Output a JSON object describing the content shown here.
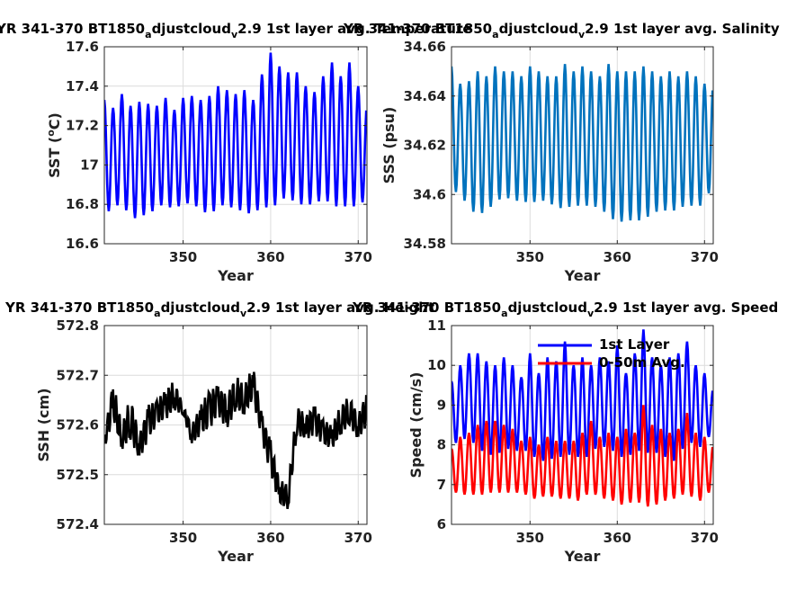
{
  "chart_data": [
    {
      "type": "line",
      "title": "YR 341-370 BT1850_adjustcloud_v2.9 1st layer avg. Temperature",
      "title_main": "YR 341-370 BT1850",
      "title_sub1": "a",
      "title_mid": "djustcloud",
      "title_sub2": "v",
      "title_rest": "2.9 1st layer avg. Temperature",
      "xlabel": "Year",
      "ylabel": "SST (",
      "ylabel_sup": "o",
      "ylabel_end": "C)",
      "xlim": [
        341,
        371
      ],
      "ylim": [
        16.6,
        17.6
      ],
      "xticks": [
        "350",
        "360",
        "370"
      ],
      "xtick_values": [
        350,
        360,
        370
      ],
      "yticks": [
        "16.6",
        "16.8",
        "17",
        "17.2",
        "17.4",
        "17.6"
      ],
      "ytick_values": [
        16.6,
        16.8,
        17.0,
        17.2,
        17.4,
        17.6
      ],
      "grid": true,
      "series": [
        {
          "color": "#0000ff",
          "x": [
            341,
            342,
            343,
            344,
            345,
            346,
            347,
            348,
            349,
            350,
            351,
            352,
            353,
            354,
            355,
            356,
            357,
            358,
            359,
            360,
            361,
            362,
            363,
            364,
            365,
            366,
            367,
            368,
            369,
            370,
            371
          ],
          "y_max": [
            17.33,
            17.29,
            17.36,
            17.3,
            17.32,
            17.31,
            17.3,
            17.34,
            17.28,
            17.34,
            17.35,
            17.33,
            17.35,
            17.4,
            17.38,
            17.36,
            17.38,
            17.33,
            17.46,
            17.57,
            17.5,
            17.47,
            17.47,
            17.4,
            17.37,
            17.45,
            17.52,
            17.45,
            17.52,
            17.4,
            17.3
          ],
          "y_min": [
            16.77,
            16.76,
            16.83,
            16.71,
            16.75,
            16.74,
            16.79,
            16.8,
            16.77,
            16.81,
            16.8,
            16.78,
            16.74,
            16.79,
            16.8,
            16.77,
            16.77,
            16.74,
            16.8,
            16.77,
            16.82,
            16.84,
            16.8,
            16.8,
            16.8,
            16.83,
            16.8,
            16.78,
            16.8,
            16.78,
            16.84
          ]
        }
      ]
    },
    {
      "type": "line",
      "title": "YR 341-370 BT1850_adjustcloud_v2.9 1st layer avg. Salinity",
      "title_main": "YR 341-370 BT1850",
      "title_sub1": "a",
      "title_mid": "djustcloud",
      "title_sub2": "v",
      "title_rest": "2.9 1st layer avg. Salinity",
      "xlabel": "Year",
      "ylabel": "SSS (psu)",
      "xlim": [
        341,
        371
      ],
      "ylim": [
        34.58,
        34.66
      ],
      "xticks": [
        "350",
        "360",
        "370"
      ],
      "xtick_values": [
        350,
        360,
        370
      ],
      "yticks": [
        "34.58",
        "34.6",
        "34.62",
        "34.64",
        "34.66"
      ],
      "ytick_values": [
        34.58,
        34.6,
        34.62,
        34.64,
        34.66
      ],
      "grid": true,
      "series": [
        {
          "color": "#0072bd",
          "x": [
            341,
            342,
            343,
            344,
            345,
            346,
            347,
            348,
            349,
            350,
            351,
            352,
            353,
            354,
            355,
            356,
            357,
            358,
            359,
            360,
            361,
            362,
            363,
            364,
            365,
            366,
            367,
            368,
            369,
            370,
            371
          ],
          "y_max": [
            34.652,
            34.645,
            34.646,
            34.65,
            34.648,
            34.652,
            34.65,
            34.65,
            34.648,
            34.652,
            34.65,
            34.648,
            34.648,
            34.653,
            34.65,
            34.652,
            34.65,
            34.648,
            34.653,
            34.65,
            34.65,
            34.65,
            34.652,
            34.65,
            34.648,
            34.65,
            34.648,
            34.65,
            34.648,
            34.645,
            34.645
          ],
          "y_min": [
            34.602,
            34.6,
            34.595,
            34.591,
            34.594,
            34.596,
            34.6,
            34.597,
            34.598,
            34.596,
            34.598,
            34.597,
            34.595,
            34.594,
            34.596,
            34.595,
            34.596,
            34.594,
            34.592,
            34.588,
            34.59,
            34.589,
            34.59,
            34.592,
            34.594,
            34.593,
            34.594,
            34.596,
            34.595,
            34.596,
            34.605
          ]
        }
      ]
    },
    {
      "type": "line",
      "title": "YR 341-370 BT1850_adjustcloud_v2.9 1st layer avg. Height",
      "title_main": "YR 341-370 BT1850",
      "title_sub1": "a",
      "title_mid": "djustcloud",
      "title_sub2": "v",
      "title_rest": "2.9 1st layer avg. Height",
      "xlabel": "Year",
      "ylabel": "SSH (cm)",
      "xlim": [
        341,
        371
      ],
      "ylim": [
        572.4,
        572.8
      ],
      "xticks": [
        "350",
        "360",
        "370"
      ],
      "xtick_values": [
        350,
        360,
        370
      ],
      "yticks": [
        "572.4",
        "572.5",
        "572.6",
        "572.7",
        "572.8"
      ],
      "ytick_values": [
        572.4,
        572.5,
        572.6,
        572.7,
        572.8
      ],
      "grid": true,
      "series": [
        {
          "color": "#000000",
          "x": [
            341,
            342,
            343,
            344,
            345,
            346,
            347,
            348,
            349,
            350,
            351,
            352,
            353,
            354,
            355,
            356,
            357,
            358,
            359,
            360,
            361,
            362,
            363,
            364,
            365,
            366,
            367,
            368,
            369,
            370,
            371
          ],
          "y": [
            572.58,
            572.69,
            572.6,
            572.66,
            572.58,
            572.64,
            572.65,
            572.67,
            572.69,
            572.64,
            572.6,
            572.64,
            572.67,
            572.68,
            572.66,
            572.7,
            572.68,
            572.72,
            572.62,
            572.57,
            572.49,
            572.48,
            572.64,
            572.62,
            572.64,
            572.61,
            572.6,
            572.64,
            572.66,
            572.62,
            572.67
          ],
          "y_min": [
            572.55,
            572.61,
            572.55,
            572.57,
            572.53,
            572.57,
            572.6,
            572.61,
            572.63,
            572.62,
            572.56,
            572.58,
            572.59,
            572.62,
            572.59,
            572.63,
            572.62,
            572.65,
            572.57,
            572.5,
            572.44,
            572.43,
            572.58,
            572.57,
            572.58,
            572.56,
            572.55,
            572.58,
            572.6,
            572.57,
            572.6
          ]
        }
      ]
    },
    {
      "type": "line",
      "title": "YR 341-370 BT1850_adjustcloud_v2.9 1st layer avg. Speed",
      "title_main": "YR 341-370 BT1850",
      "title_sub1": "a",
      "title_mid": "djustcloud",
      "title_sub2": "v",
      "title_rest": "2.9 1st layer avg. Speed",
      "xlabel": "Year",
      "ylabel": "Speed (cm/s)",
      "xlim": [
        341,
        371
      ],
      "ylim": [
        6,
        11
      ],
      "xticks": [
        "350",
        "360",
        "370"
      ],
      "xtick_values": [
        350,
        360,
        370
      ],
      "yticks": [
        "6",
        "7",
        "8",
        "9",
        "10",
        "11"
      ],
      "ytick_values": [
        6,
        7,
        8,
        9,
        10,
        11
      ],
      "grid": true,
      "legend": {
        "placement": "top-right",
        "entries": [
          "1st Layer",
          "0-50m Avg."
        ]
      },
      "series": [
        {
          "name": "1st Layer",
          "color": "#0000ff",
          "x": [
            341,
            342,
            343,
            344,
            345,
            346,
            347,
            348,
            349,
            350,
            351,
            352,
            353,
            354,
            355,
            356,
            357,
            358,
            359,
            360,
            361,
            362,
            363,
            364,
            365,
            366,
            367,
            368,
            369,
            370,
            371
          ],
          "y_max": [
            9.6,
            10.0,
            10.3,
            10.3,
            10.1,
            10.0,
            10.2,
            10.0,
            9.7,
            10.3,
            9.8,
            10.2,
            10.1,
            10.6,
            10.0,
            10.2,
            10.0,
            10.2,
            10.1,
            10.5,
            9.8,
            10.3,
            10.9,
            10.2,
            10.0,
            10.2,
            10.3,
            10.6,
            10.0,
            9.8,
            9.4
          ],
          "y_min": [
            8.1,
            8.0,
            8.3,
            7.8,
            7.9,
            7.6,
            8.0,
            7.8,
            7.9,
            7.8,
            7.6,
            7.6,
            7.7,
            7.7,
            7.8,
            7.6,
            7.8,
            8.0,
            7.9,
            7.8,
            7.6,
            7.9,
            7.8,
            7.8,
            7.8,
            7.6,
            7.6,
            8.2,
            7.9,
            8.0,
            8.4
          ]
        },
        {
          "name": "0-50m Avg.",
          "color": "#ff0000",
          "x": [
            341,
            342,
            343,
            344,
            345,
            346,
            347,
            348,
            349,
            350,
            351,
            352,
            353,
            354,
            355,
            356,
            357,
            358,
            359,
            360,
            361,
            362,
            363,
            364,
            365,
            366,
            367,
            368,
            369,
            370,
            371
          ],
          "y_max": [
            7.9,
            8.2,
            8.3,
            8.5,
            8.6,
            8.6,
            8.5,
            8.4,
            8.1,
            8.2,
            8.0,
            8.2,
            8.1,
            8.1,
            8.1,
            8.3,
            8.6,
            8.2,
            8.3,
            8.2,
            8.4,
            8.3,
            9.0,
            8.5,
            8.4,
            8.3,
            8.4,
            8.8,
            8.3,
            8.2,
            8.0
          ],
          "y_min": [
            6.9,
            6.7,
            6.8,
            6.7,
            6.8,
            6.8,
            6.8,
            6.8,
            6.8,
            6.7,
            6.6,
            6.8,
            6.6,
            6.7,
            6.6,
            6.6,
            6.9,
            6.6,
            6.7,
            6.5,
            6.5,
            6.6,
            6.5,
            6.4,
            6.6,
            6.6,
            6.7,
            6.8,
            6.6,
            6.6,
            7.0
          ]
        }
      ]
    }
  ]
}
